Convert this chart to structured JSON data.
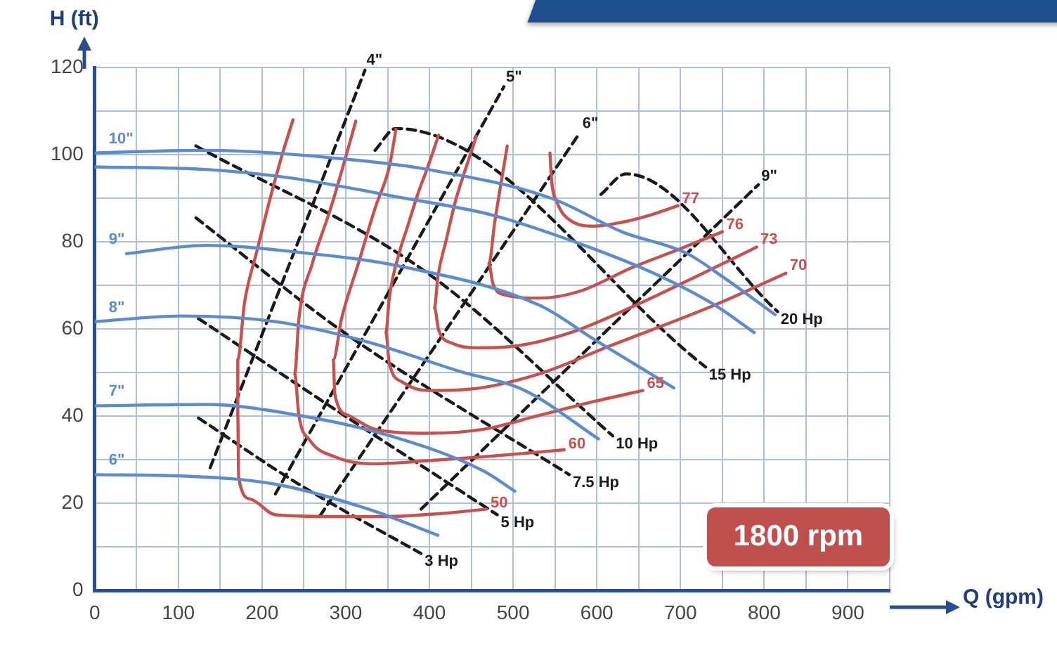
{
  "chart_data": {
    "type": "line",
    "xlabel": "Q (gpm)",
    "ylabel": "H (ft)",
    "xlim": [
      0,
      950
    ],
    "ylim": [
      0,
      120
    ],
    "xticks": [
      0,
      {
        "value": 50,
        "label": null
      },
      100,
      {
        "value": 150,
        "label": null
      },
      200,
      {
        "value": 250,
        "label": null
      },
      300,
      {
        "value": 350,
        "label": null
      },
      400,
      {
        "value": 450,
        "label": null
      },
      500,
      {
        "value": 550,
        "label": null
      },
      600,
      {
        "value": 650,
        "label": null
      },
      700,
      {
        "value": 750,
        "label": null
      },
      800,
      {
        "value": 850,
        "label": null
      },
      900,
      {
        "value": 950,
        "label": null
      }
    ],
    "yticks": [
      0,
      {
        "value": 10,
        "label": null
      },
      20,
      {
        "value": 30,
        "label": null
      },
      40,
      {
        "value": 50,
        "label": null
      },
      60,
      {
        "value": 70,
        "label": null
      },
      80,
      {
        "value": 90,
        "label": null
      },
      100,
      {
        "value": 110,
        "label": null
      },
      120
    ],
    "grid": true,
    "legend": false,
    "marker": "none",
    "annotations": [
      "1800 rpm"
    ],
    "series": [
      {
        "name": "10\"",
        "color": "#5b8bd0",
        "x": [
          813,
          751,
          708,
          630,
          547,
          398,
          298,
          133,
          0
        ],
        "values": [
          63.3,
          71.9,
          77.3,
          82.3,
          89.9,
          96.6,
          99,
          101,
          100.4
        ]
      },
      {
        "color": "#5b8bd0",
        "x": [
          788,
          741,
          668,
          585,
          476,
          365,
          232,
          133,
          0
        ],
        "values": [
          59.2,
          65.5,
          72.8,
          79.2,
          86.1,
          90.2,
          94.7,
          96.6,
          97.2
        ]
      },
      {
        "name": "9\"",
        "color": "#5b8bd0",
        "x": [
          692,
          597,
          531,
          365,
          244,
          133,
          38
        ],
        "values": [
          46.5,
          57.6,
          65.5,
          74.4,
          77.6,
          79.2,
          77.3
        ]
      },
      {
        "name": "8\"",
        "color": "#5b8bd0",
        "x": [
          602,
          514,
          436,
          327,
          216,
          104,
          0
        ],
        "values": [
          34.8,
          45.9,
          50.3,
          57,
          61.7,
          63,
          61.7
        ]
      },
      {
        "name": "7\"",
        "color": "#5b8bd0",
        "x": [
          502,
          464,
          353,
          244,
          133,
          0
        ],
        "values": [
          22.8,
          27.5,
          35.5,
          40.2,
          42.7,
          42.4
        ]
      },
      {
        "name": "6\"",
        "color": "#5b8bd0",
        "x": [
          410,
          327,
          216,
          104,
          0
        ],
        "values": [
          12.7,
          18.7,
          24.4,
          26.3,
          26.6
        ]
      },
      {
        "name": "50",
        "color": "#c9504b",
        "x": [
          237,
          224,
          207,
          194,
          179,
          171,
          171,
          172,
          186,
          216,
          282,
          348,
          415,
          468
        ],
        "values": [
          108,
          100,
          88,
          78,
          66,
          53,
          40,
          26,
          21,
          17.4,
          17,
          17,
          17.7,
          18.7
        ]
      },
      {
        "name": "60",
        "color": "#c9504b",
        "x": [
          312,
          299,
          282,
          260,
          244,
          239,
          244,
          257,
          287,
          332,
          398,
          464,
          514,
          561
        ],
        "values": [
          107.7,
          98.8,
          87.7,
          75,
          62.4,
          49.7,
          40.2,
          34.5,
          30.7,
          29.1,
          29.8,
          30.7,
          31.5,
          32.3
        ]
      },
      {
        "name": "65",
        "color": "#c9504b",
        "x": [
          360,
          352,
          335,
          315,
          295,
          285,
          287,
          303,
          335,
          398,
          464,
          531,
          597,
          655
        ],
        "values": [
          105.8,
          97.2,
          87.7,
          75,
          62.4,
          52.9,
          45,
          40.2,
          37,
          36.1,
          37,
          40.2,
          43.4,
          45.9
        ]
      },
      {
        "name": "70",
        "color": "#c9504b",
        "x": [
          411,
          398,
          386,
          373,
          365,
          352,
          348,
          352,
          368,
          398,
          448,
          531,
          614,
          741,
          826
        ],
        "values": [
          104.5,
          97.2,
          90.9,
          83,
          78.2,
          67.1,
          59.2,
          52.2,
          47.8,
          45.9,
          46.2,
          49.7,
          56,
          65.5,
          72.8
        ]
      },
      {
        "name": "73",
        "color": "#c9504b",
        "x": [
          456,
          444,
          431,
          420,
          410,
          406,
          411,
          428,
          456,
          498,
          569,
          647,
          730,
          791
        ],
        "values": [
          104.2,
          97.2,
          89.3,
          80.4,
          71.9,
          64.9,
          59.8,
          56.7,
          55.7,
          56,
          59.2,
          65.5,
          73.1,
          78.8
        ]
      },
      {
        "name": "76",
        "color": "#c9504b",
        "x": [
          493,
          486,
          478,
          471,
          476,
          491,
          531,
          580,
          642,
          697,
          750
        ],
        "values": [
          102,
          94,
          84.5,
          75,
          70.3,
          67.8,
          67.1,
          68.7,
          74.1,
          78.2,
          82.3
        ]
      },
      {
        "name": "77",
        "color": "#c9504b",
        "x": [
          544,
          546,
          552,
          572,
          597,
          630,
          663,
          697
        ],
        "values": [
          100.4,
          94,
          89.3,
          84.5,
          83.6,
          84.5,
          86.1,
          88.3
        ]
      },
      {
        "name": "3 Hp",
        "color": "#1a1a1a",
        "line_style": "dashed",
        "x": [
          124,
          244,
          390
        ],
        "values": [
          39.6,
          24.4,
          8.5
        ]
      },
      {
        "name": "5 Hp",
        "color": "#1a1a1a",
        "line_style": "dashed",
        "x": [
          124,
          298,
          481
        ],
        "values": [
          62.4,
          40.2,
          17.4
        ]
      },
      {
        "name": "7.5 Hp",
        "color": "#1a1a1a",
        "line_style": "dashed",
        "x": [
          121,
          298,
          567
        ],
        "values": [
          85.5,
          59.2,
          26.6
        ]
      },
      {
        "name": "10 Hp",
        "color": "#1a1a1a",
        "line_style": "dashed",
        "x": [
          121,
          398,
          619
        ],
        "values": [
          102,
          72.8,
          35.5
        ]
      },
      {
        "name": "15 Hp",
        "color": "#1a1a1a",
        "line_style": "dashed",
        "x": [
          335,
          360,
          730
        ],
        "values": [
          101,
          106,
          51.3
        ]
      },
      {
        "name": "20 Hp",
        "color": "#1a1a1a",
        "line_style": "dashed",
        "x": [
          605,
          635,
          816
        ],
        "values": [
          90.9,
          95.6,
          64
        ]
      },
      {
        "name": "4\"",
        "color": "#1a1a1a",
        "line_style": "dashed",
        "x": [
          138,
          323
        ],
        "values": [
          28.2,
          119.4
        ]
      },
      {
        "name": "5\"",
        "color": "#1a1a1a",
        "line_style": "dashed",
        "x": [
          216,
          489
        ],
        "values": [
          22.2,
          115.6
        ]
      },
      {
        "name": "6\"",
        "color": "#1a1a1a",
        "line_style": "dashed",
        "x": [
          269,
          580
        ],
        "values": [
          17.1,
          105.1
        ]
      },
      {
        "name": "9\"",
        "color": "#1a1a1a",
        "line_style": "dashed",
        "x": [
          390,
          793
        ],
        "values": [
          18.7,
          93.1
        ]
      }
    ]
  }
}
